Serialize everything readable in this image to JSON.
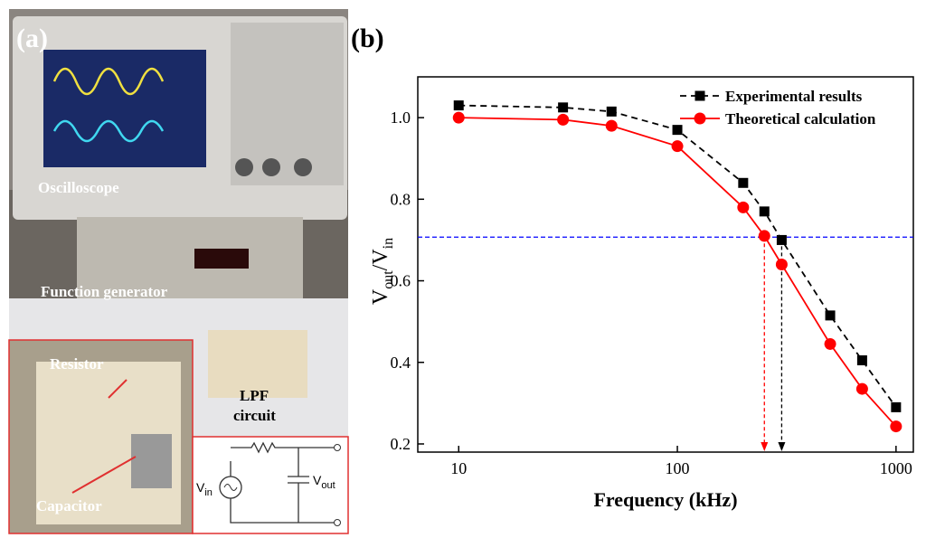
{
  "photo": {
    "panel_label": "(a)",
    "labels": {
      "oscilloscope": "Oscilloscope",
      "generator": "Function generator",
      "resistor": "Resistor",
      "capacitor": "Capacitor",
      "lpf1": "LPF",
      "lpf2": "circuit"
    },
    "circuit": {
      "vin_main": "V",
      "vin_sub": "in",
      "vout_main": "V",
      "vout_sub": "out"
    }
  },
  "chart_data": {
    "type": "line",
    "panel_label": "(b)",
    "xlabel": "Frequency (kHz)",
    "ylabel": {
      "main1": "V",
      "sub1": "out",
      "main2": "/V",
      "sub2": "in"
    },
    "x": [
      10,
      30,
      50,
      100,
      200,
      250,
      300,
      500,
      700,
      1000
    ],
    "series": [
      {
        "name": "Experimental results",
        "color": "#000000",
        "marker": "square",
        "dash": true,
        "values": [
          1.03,
          1.025,
          1.015,
          0.97,
          0.84,
          0.77,
          0.7,
          0.515,
          0.405,
          0.29
        ]
      },
      {
        "name": "Theoretical calculation",
        "color": "#ff0000",
        "marker": "circle",
        "dash": false,
        "values": [
          1.0,
          0.995,
          0.98,
          0.93,
          0.78,
          0.71,
          0.64,
          0.445,
          0.335,
          0.243
        ]
      }
    ],
    "xlog": true,
    "xlim": [
      6.5,
      1200
    ],
    "xticks": [
      10,
      100,
      1000
    ],
    "ylim": [
      0.18,
      1.1
    ],
    "yticks": [
      0.2,
      0.4,
      0.6,
      0.8,
      {
        "value": 1.0,
        "label": "1.0"
      }
    ],
    "legend": "upper right",
    "cutoff_line": {
      "value": 0.707,
      "color": "#0000ff"
    },
    "cutoff_markers": [
      {
        "x": 250,
        "y": 0.707,
        "color": "#ff0000"
      },
      {
        "x": 300,
        "y": 0.7,
        "color": "#000000"
      }
    ]
  }
}
